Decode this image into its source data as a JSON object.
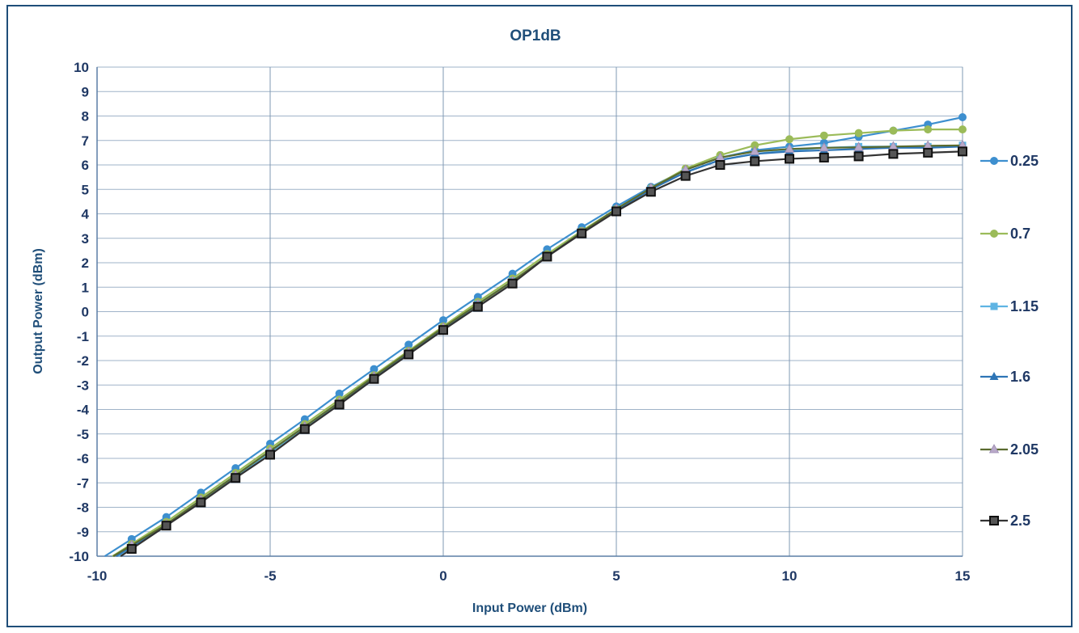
{
  "chart_data": {
    "type": "line",
    "title": "OP1dB",
    "xlabel": "Input Power (dBm)",
    "ylabel": "Output Power (dBm)",
    "xlim": [
      -10,
      15
    ],
    "ylim": [
      -10,
      10
    ],
    "xticks": [
      "-10",
      "-5",
      "0",
      "5",
      "10",
      "15"
    ],
    "yticks": [
      "10",
      "9",
      "8",
      "7",
      "6",
      "5",
      "4",
      "3",
      "2",
      "1",
      "0",
      "-1",
      "-2",
      "-3",
      "-4",
      "-5",
      "-6",
      "-7",
      "-8",
      "-9",
      "-10"
    ],
    "grid": true,
    "legend_position": "right",
    "x": [
      -9,
      -8,
      -7,
      -6,
      -5,
      -4,
      -3,
      -2,
      -1,
      0,
      1,
      2,
      3,
      4,
      5,
      6,
      7,
      8,
      9,
      10,
      11,
      12,
      13,
      14,
      15
    ],
    "series": [
      {
        "name": "0.25",
        "color": "#3d8fcf",
        "marker": "circle",
        "values": [
          -9.3,
          -8.4,
          -7.4,
          -6.4,
          -5.4,
          -4.4,
          -3.35,
          -2.35,
          -1.35,
          -0.35,
          0.6,
          1.55,
          2.55,
          3.45,
          4.3,
          5.1,
          5.8,
          6.3,
          6.6,
          6.75,
          6.9,
          7.15,
          7.4,
          7.65,
          7.95
        ]
      },
      {
        "name": "0.7",
        "color": "#9bbb59",
        "marker": "circle",
        "values": [
          -9.5,
          -8.6,
          -7.6,
          -6.6,
          -5.6,
          -4.6,
          -3.6,
          -2.6,
          -1.6,
          -0.6,
          0.4,
          1.35,
          2.35,
          3.3,
          4.2,
          5.05,
          5.85,
          6.4,
          6.8,
          7.05,
          7.2,
          7.3,
          7.4,
          7.45,
          7.45
        ]
      },
      {
        "name": "1.15",
        "color": "#5fb4e3",
        "marker": "square",
        "values": [
          -9.65,
          -8.75,
          -7.75,
          -6.75,
          -5.75,
          -4.75,
          -3.75,
          -2.7,
          -1.7,
          -0.7,
          0.3,
          1.25,
          2.25,
          3.25,
          4.15,
          5.0,
          5.7,
          6.2,
          6.45,
          6.6,
          6.7,
          6.75,
          6.75,
          6.75,
          6.8
        ]
      },
      {
        "name": "1.6",
        "color": "#2e75b6",
        "marker": "triangle",
        "values": [
          -9.6,
          -8.7,
          -7.7,
          -6.7,
          -5.7,
          -4.7,
          -3.7,
          -2.7,
          -1.7,
          -0.7,
          0.3,
          1.25,
          2.25,
          3.25,
          4.15,
          5.0,
          5.7,
          6.2,
          6.45,
          6.55,
          6.6,
          6.65,
          6.7,
          6.7,
          6.75
        ]
      },
      {
        "name": "2.05",
        "color": "#5a6b2f",
        "marker": "triangle-light",
        "values": [
          -9.55,
          -8.7,
          -7.7,
          -6.7,
          -5.7,
          -4.7,
          -3.7,
          -2.65,
          -1.65,
          -0.65,
          0.3,
          1.25,
          2.25,
          3.25,
          4.2,
          5.05,
          5.8,
          6.3,
          6.55,
          6.65,
          6.7,
          6.72,
          6.75,
          6.78,
          6.8
        ]
      },
      {
        "name": "2.5",
        "color": "#333333",
        "marker": "square-dark",
        "values": [
          -9.7,
          -8.75,
          -7.8,
          -6.8,
          -5.85,
          -4.8,
          -3.8,
          -2.75,
          -1.75,
          -0.75,
          0.2,
          1.15,
          2.25,
          3.2,
          4.1,
          4.9,
          5.55,
          6.0,
          6.15,
          6.25,
          6.3,
          6.35,
          6.45,
          6.5,
          6.55
        ]
      }
    ]
  }
}
